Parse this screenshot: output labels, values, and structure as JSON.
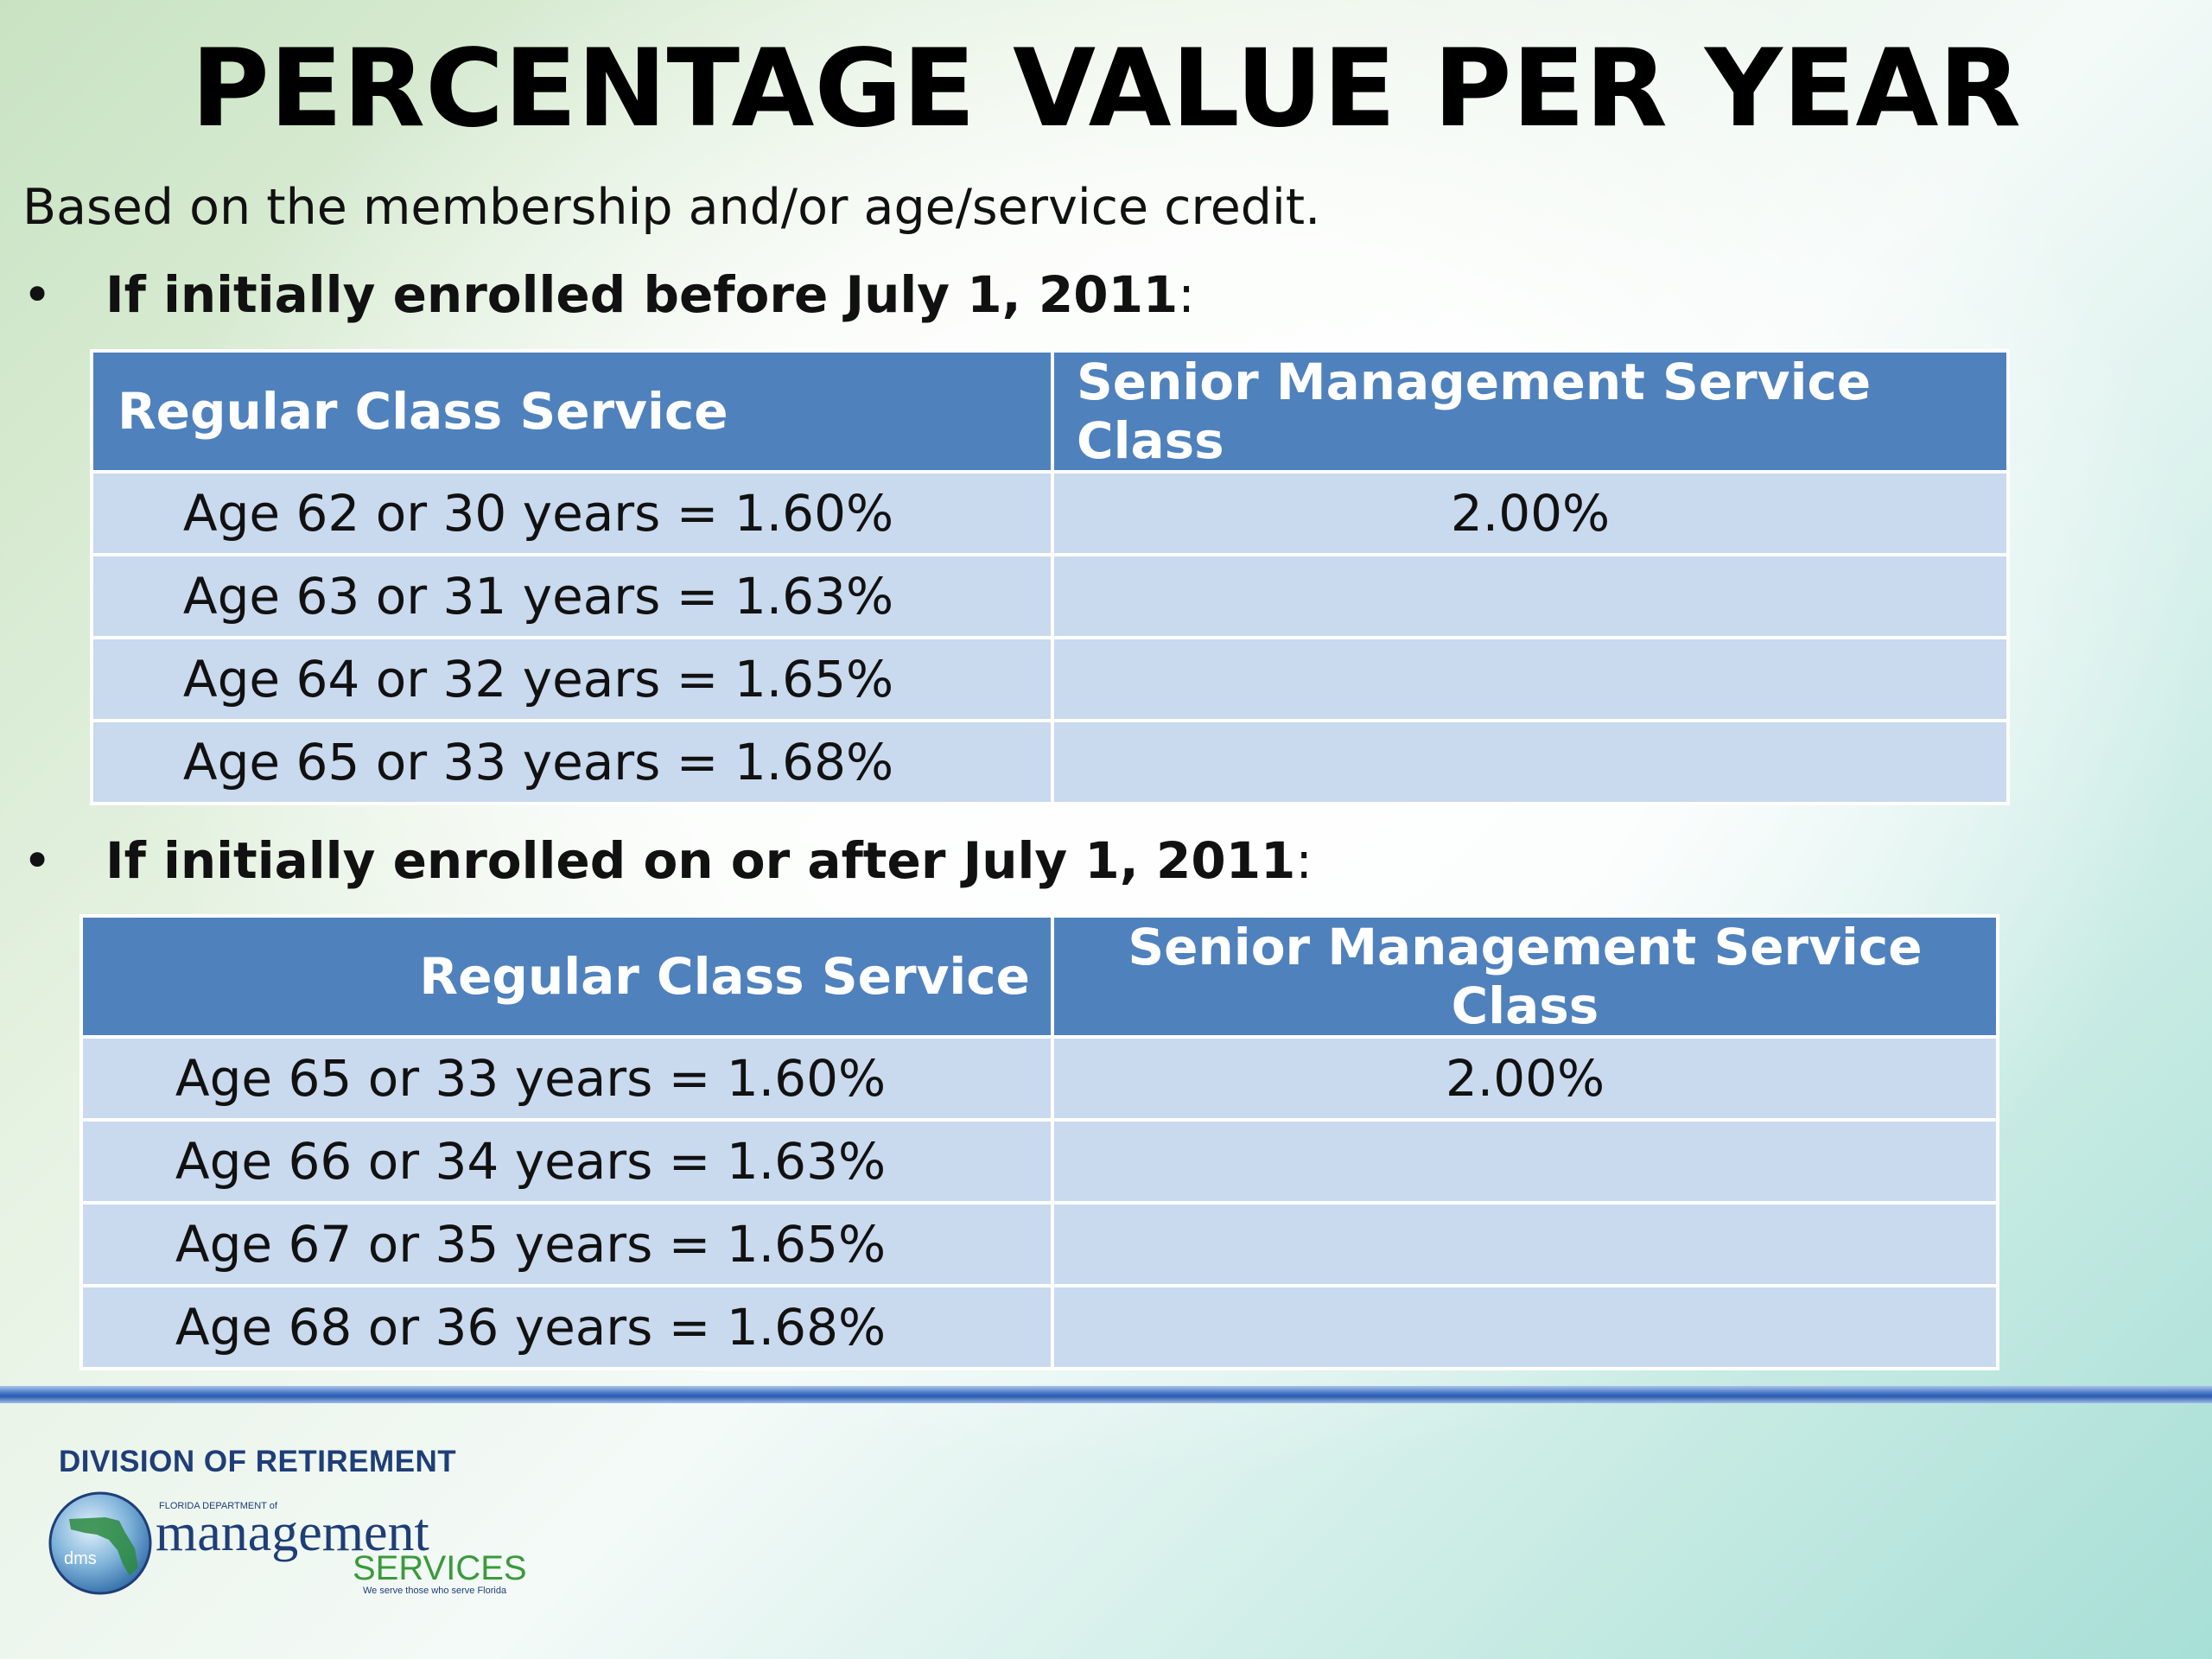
{
  "title": "PERCENTAGE VALUE PER YEAR",
  "subtitle": "Based on the membership and/or age/service credit.",
  "section1": {
    "bullet": "•",
    "heading": "If initially enrolled before July 1, 2011",
    "colon": ":",
    "table": {
      "headers": [
        "Regular Class Service",
        "Senior Management Service Class"
      ],
      "rows": [
        [
          "Age 62 or 30 years = 1.60%",
          "2.00%"
        ],
        [
          "Age 63 or 31 years = 1.63%",
          ""
        ],
        [
          "Age 64 or 32 years = 1.65%",
          ""
        ],
        [
          "Age 65 or 33 years = 1.68%",
          ""
        ]
      ]
    }
  },
  "section2": {
    "bullet": "•",
    "heading": "If initially enrolled on or after July 1, 2011",
    "colon": ":",
    "table": {
      "headers": [
        "Regular Class Service",
        "Senior Management Service Class"
      ],
      "rows": [
        [
          "Age 65 or 33 years = 1.60%",
          "2.00%"
        ],
        [
          "Age 66 or 34 years = 1.63%",
          ""
        ],
        [
          "Age 67 or 35 years = 1.65%",
          ""
        ],
        [
          "Age 68 or 36 years = 1.68%",
          ""
        ]
      ]
    }
  },
  "footer": {
    "org": "DIVISION OF RETIREMENT",
    "logo": {
      "badge": "dms",
      "small_caption": "FLORIDA DEPARTMENT of",
      "word1": "management",
      "word2": "SERVICES",
      "tagline": "We serve those who serve Florida"
    }
  },
  "colors": {
    "header_fill": "#4f81bd",
    "row_fill": "#c9d9ee",
    "rule": "#3d6fc2",
    "logo_blue": "#1f3e78",
    "logo_green": "#3a9a3a"
  }
}
